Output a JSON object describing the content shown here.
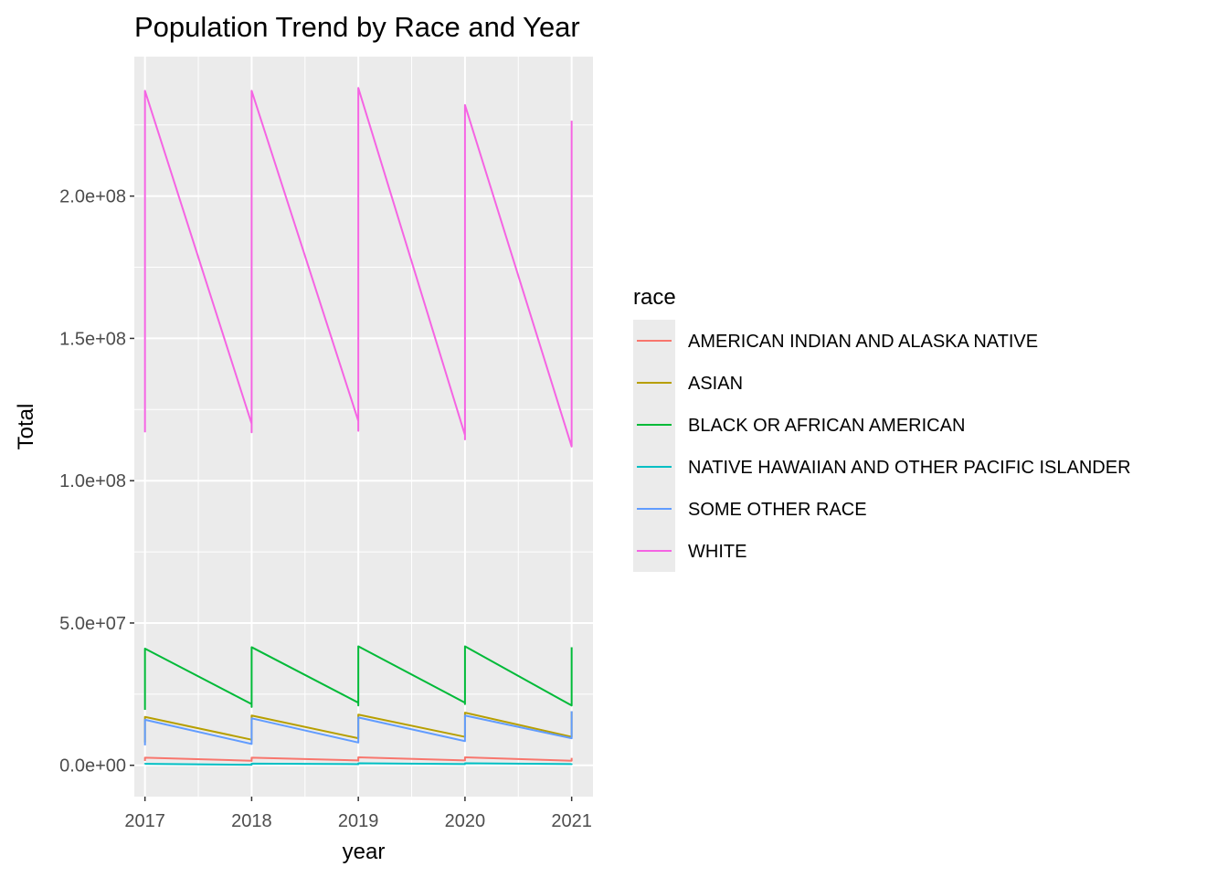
{
  "chart_data": {
    "type": "line",
    "title": "Population Trend by Race and Year",
    "xlabel": "year",
    "ylabel": "Total",
    "x_ticks": [
      2017,
      2018,
      2019,
      2020,
      2021
    ],
    "y_ticks": [
      0,
      50000000,
      100000000,
      150000000,
      200000000
    ],
    "y_tick_labels": [
      "0.0e+00",
      "5.0e+07",
      "1.0e+08",
      "1.5e+08",
      "2.0e+08"
    ],
    "xlim": [
      2016.9,
      2021.2
    ],
    "ylim": [
      -11000000,
      249000000
    ],
    "grid": true,
    "legend_position": "right",
    "legend_title": "race",
    "note": "Each year has multiple observations; lines drop from a high value at the start of each year to a low value near the next year, then jump back up.",
    "series": [
      {
        "name": "AMERICAN INDIAN AND ALASKA NATIVE",
        "color": "#F8766D",
        "x": [
          2017,
          2017,
          2018,
          2018,
          2018,
          2019,
          2019,
          2019,
          2020,
          2020,
          2020,
          2021,
          2021
        ],
        "y": [
          1500000,
          2700000,
          1600000,
          1500000,
          2700000,
          1700000,
          1600000,
          2800000,
          1700000,
          1700000,
          2800000,
          1600000,
          2600000
        ]
      },
      {
        "name": "ASIAN",
        "color": "#B79F00",
        "x": [
          2017,
          2017,
          2018,
          2018,
          2018,
          2019,
          2019,
          2019,
          2020,
          2020,
          2020,
          2021,
          2021
        ],
        "y": [
          8000000,
          17000000,
          9000000,
          9000000,
          17500000,
          9500000,
          9500000,
          17800000,
          10000000,
          10000000,
          18500000,
          10000000,
          19000000
        ]
      },
      {
        "name": "BLACK OR AFRICAN AMERICAN",
        "color": "#00BA38",
        "x": [
          2017,
          2017,
          2018,
          2018,
          2018,
          2019,
          2019,
          2019,
          2020,
          2020,
          2020,
          2021,
          2021
        ],
        "y": [
          19500000,
          41000000,
          21500000,
          20500000,
          41500000,
          22000000,
          21000000,
          41800000,
          22000000,
          21500000,
          41800000,
          21000000,
          41500000
        ]
      },
      {
        "name": "NATIVE HAWAIIAN AND OTHER PACIFIC ISLANDER",
        "color": "#00BFC4",
        "x": [
          2017,
          2017,
          2018,
          2018,
          2018,
          2019,
          2019,
          2019,
          2020,
          2020,
          2020,
          2021,
          2021
        ],
        "y": [
          400000,
          500000,
          200000,
          200000,
          600000,
          400000,
          400000,
          700000,
          450000,
          450000,
          700000,
          450000,
          650000
        ]
      },
      {
        "name": "SOME OTHER RACE",
        "color": "#619CFF",
        "x": [
          2017,
          2017,
          2018,
          2018,
          2018,
          2019,
          2019,
          2019,
          2020,
          2020,
          2020,
          2021,
          2021
        ],
        "y": [
          7000000,
          16000000,
          7500000,
          7500000,
          16500000,
          8000000,
          8000000,
          16800000,
          8500000,
          8500000,
          17500000,
          9500000,
          19000000
        ]
      },
      {
        "name": "WHITE",
        "color": "#F564E3",
        "x": [
          2017,
          2017,
          2018,
          2018,
          2018,
          2019,
          2019,
          2019,
          2020,
          2020,
          2020,
          2021,
          2021
        ],
        "y": [
          117000000,
          237000000,
          120000000,
          117000000,
          237000000,
          121000000,
          117500000,
          238000000,
          116000000,
          114500000,
          232000000,
          112000000,
          226500000
        ]
      }
    ]
  }
}
